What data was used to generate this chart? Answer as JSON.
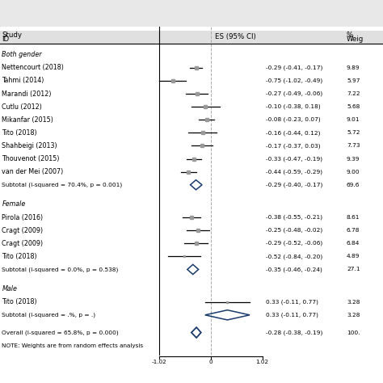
{
  "x_min": -1.02,
  "x_max": 1.02,
  "x_ticks": [
    -1.02,
    0,
    1.02
  ],
  "x_tick_labels": [
    "-1.02",
    "0",
    "1.02"
  ],
  "groups": [
    {
      "label": "Both gender",
      "studies": [
        {
          "name": "Nettencourt (2018)",
          "es": -0.29,
          "ci_lo": -0.41,
          "ci_hi": -0.17,
          "weight": "9.89"
        },
        {
          "name": "Tahmi (2014)",
          "es": -0.75,
          "ci_lo": -1.02,
          "ci_hi": -0.49,
          "weight": "5.97"
        },
        {
          "name": "Marandi (2012)",
          "es": -0.27,
          "ci_lo": -0.49,
          "ci_hi": -0.06,
          "weight": "7.22"
        },
        {
          "name": "Cutlu (2012)",
          "es": -0.1,
          "ci_lo": -0.38,
          "ci_hi": 0.18,
          "weight": "5.68"
        },
        {
          "name": "Mikanfar (2015)",
          "es": -0.08,
          "ci_lo": -0.23,
          "ci_hi": 0.07,
          "weight": "9.01"
        },
        {
          "name": "Tito (2018)",
          "es": -0.16,
          "ci_lo": -0.44,
          "ci_hi": 0.12,
          "weight": "5.72"
        },
        {
          "name": "Shahbeigi (2013)",
          "es": -0.17,
          "ci_lo": -0.37,
          "ci_hi": 0.03,
          "weight": "7.73"
        },
        {
          "name": "Thouvenot (2015)",
          "es": -0.33,
          "ci_lo": -0.47,
          "ci_hi": -0.19,
          "weight": "9.39"
        },
        {
          "name": "van der Mei (2007)",
          "es": -0.44,
          "ci_lo": -0.59,
          "ci_hi": -0.29,
          "weight": "9.00"
        }
      ],
      "subtotal": {
        "es": -0.29,
        "ci_lo": -0.4,
        "ci_hi": -0.17,
        "weight": "69.6",
        "label": "Subtotal (I-squared = 70.4%, p = 0.001)"
      }
    },
    {
      "label": "Female",
      "studies": [
        {
          "name": "Pirola (2016)",
          "es": -0.38,
          "ci_lo": -0.55,
          "ci_hi": -0.21,
          "weight": "8.61"
        },
        {
          "name": "Cragt (2009)",
          "es": -0.25,
          "ci_lo": -0.48,
          "ci_hi": -0.02,
          "weight": "6.78"
        },
        {
          "name": "Cragt (2009)",
          "es": -0.29,
          "ci_lo": -0.52,
          "ci_hi": -0.06,
          "weight": "6.84"
        },
        {
          "name": "Tito (2018)",
          "es": -0.52,
          "ci_lo": -0.84,
          "ci_hi": -0.2,
          "weight": "4.89"
        }
      ],
      "subtotal": {
        "es": -0.35,
        "ci_lo": -0.46,
        "ci_hi": -0.24,
        "weight": "27.1",
        "label": "Subtotal (I-squared = 0.0%, p = 0.538)"
      }
    },
    {
      "label": "Male",
      "studies": [
        {
          "name": "Tito (2018)",
          "es": 0.33,
          "ci_lo": -0.11,
          "ci_hi": 0.77,
          "weight": "3.28"
        }
      ],
      "subtotal": {
        "es": 0.33,
        "ci_lo": -0.11,
        "ci_hi": 0.77,
        "weight": "3.28",
        "label": "Subtotal (I-squared = .%, p = .)"
      }
    }
  ],
  "overall": {
    "es": -0.28,
    "ci_lo": -0.38,
    "ci_hi": -0.19,
    "weight": "100.",
    "label": "Overall (I-squared = 65.8%, p = 0.000)"
  },
  "note": "NOTE: Weights are from random effects analysis",
  "diamond_color": "#1a3a6b",
  "point_color": "#999999",
  "bg_top_color": "#e8e8e8",
  "bg_main_color": "#f5f5f5",
  "plot_bg_color": "white"
}
